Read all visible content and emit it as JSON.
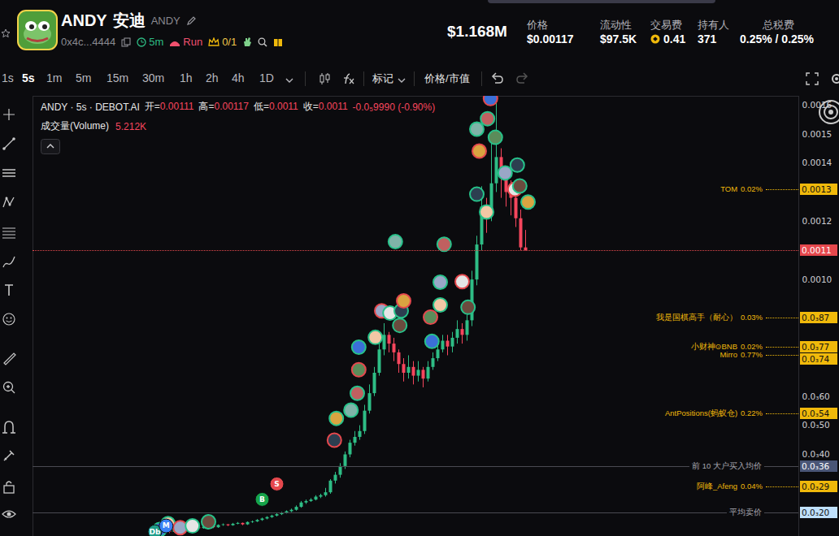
{
  "header": {
    "symbol": "ANDY",
    "name": "安迪",
    "ticker": "ANDY",
    "address": "0x4c...4444",
    "age": "5m",
    "run": "Run",
    "crown": "0/1",
    "market_cap": "$1.168M",
    "stats": [
      {
        "label": "价格",
        "value": "$0.00117"
      },
      {
        "label": "流动性",
        "value": "$97.5K"
      },
      {
        "label": "交易费",
        "value": "0.41"
      },
      {
        "label": "持有人",
        "value": "371"
      },
      {
        "label": "总税费",
        "value": "0.25% / 0.25%"
      }
    ]
  },
  "toolbar": {
    "intervals": [
      "1s",
      "5s",
      "1m",
      "5m",
      "15m",
      "30m",
      "1h",
      "2h",
      "4h",
      "1D"
    ],
    "active": "5s",
    "buttons": [
      "标记",
      "价格/市值"
    ]
  },
  "legend_line": {
    "title": "ANDY · 5s · DEBOT.AI",
    "items": [
      {
        "label": "开=",
        "value": "0.00111"
      },
      {
        "label": "高=",
        "value": "0.00117"
      },
      {
        "label": "低=",
        "value": "0.0011"
      },
      {
        "label": "收=",
        "value": "0.0011"
      }
    ],
    "change": "-0.0₅9990 (-0.90%)",
    "volume_label": "成交量(Volume)",
    "volume_value": "5.212K"
  },
  "chart_data": {
    "type": "candlestick",
    "tick_labels": "y",
    "grid": false,
    "x": [
      0,
      1,
      2,
      3,
      4,
      5,
      6,
      7,
      8,
      9,
      10,
      11,
      12,
      13,
      14,
      15,
      16,
      17,
      18,
      19,
      20,
      21,
      22,
      23,
      24,
      25,
      26,
      27,
      28,
      29,
      30,
      31,
      32,
      33,
      34,
      35,
      36,
      37,
      38,
      39,
      40,
      41,
      42,
      43,
      44,
      45,
      46,
      47,
      48,
      49,
      50,
      51,
      52,
      53,
      54,
      55,
      56,
      57,
      58,
      59,
      60,
      61,
      62,
      63,
      64,
      65,
      66,
      67,
      68,
      69,
      70,
      71,
      72,
      73,
      74,
      75
    ],
    "open": [
      0.00013,
      0.000135,
      0.000138,
      0.000134,
      0.00014,
      0.000142,
      0.000138,
      0.000145,
      0.00015,
      0.000147,
      0.000152,
      0.000155,
      0.00015,
      0.000158,
      0.00016,
      0.000157,
      0.000162,
      0.000165,
      0.00016,
      0.000168,
      0.00017,
      0.000175,
      0.00018,
      0.000185,
      0.00019,
      0.000195,
      0.0002,
      0.000205,
      0.00021,
      0.00022,
      0.000235,
      0.00024,
      0.000245,
      0.000255,
      0.00026,
      0.00027,
      0.00031,
      0.00033,
      0.00036,
      0.0004,
      0.00044,
      0.00046,
      0.00048,
      0.00055,
      0.00061,
      0.00068,
      0.00076,
      0.00081,
      0.00078,
      0.00075,
      0.00071,
      0.00068,
      0.0007,
      0.00067,
      0.00069,
      0.00066,
      0.0007,
      0.00073,
      0.00076,
      0.00079,
      0.00077,
      0.0008,
      0.00083,
      0.00081,
      0.00086,
      0.001,
      0.00112,
      0.00125,
      0.00122,
      0.00133,
      0.00142,
      0.00136,
      0.0013,
      0.00128,
      0.00121,
      0.00111
    ],
    "high": [
      0.00014,
      0.000142,
      0.00014,
      0.000143,
      0.000146,
      0.000144,
      0.000148,
      0.000153,
      0.000152,
      0.000155,
      0.000158,
      0.000157,
      0.00016,
      0.000163,
      0.000161,
      0.000165,
      0.000168,
      0.000166,
      0.00017,
      0.000173,
      0.000178,
      0.000183,
      0.000188,
      0.000193,
      0.000198,
      0.000203,
      0.000208,
      0.000214,
      0.000225,
      0.00024,
      0.000245,
      0.00025,
      0.00026,
      0.000265,
      0.000285,
      0.000315,
      0.00034,
      0.00037,
      0.00041,
      0.00045,
      0.00048,
      0.0005,
      0.00057,
      0.00064,
      0.0007,
      0.00079,
      0.00085,
      0.00082,
      0.0008,
      0.00076,
      0.00073,
      0.00074,
      0.00072,
      0.00072,
      0.0007,
      0.00072,
      0.00075,
      0.00078,
      0.00081,
      0.00081,
      0.00082,
      0.00086,
      0.00085,
      0.00088,
      0.00103,
      0.00115,
      0.00132,
      0.00128,
      0.0015,
      0.00163,
      0.00145,
      0.00138,
      0.00134,
      0.00129,
      0.00124,
      0.00117
    ],
    "low": [
      0.000128,
      0.000132,
      0.00013,
      0.000132,
      0.000138,
      0.000135,
      0.000136,
      0.000143,
      0.000144,
      0.000145,
      0.00015,
      0.000147,
      0.000148,
      0.000155,
      0.000154,
      0.000155,
      0.00016,
      0.000157,
      0.000158,
      0.000165,
      0.000168,
      0.000172,
      0.000177,
      0.000182,
      0.000187,
      0.000192,
      0.000197,
      0.000202,
      0.000207,
      0.000217,
      0.00023,
      0.000237,
      0.000242,
      0.00025,
      0.000255,
      0.000265,
      0.0003,
      0.00032,
      0.00035,
      0.00039,
      0.00043,
      0.00045,
      0.00047,
      0.00054,
      0.0006,
      0.00067,
      0.00074,
      0.00075,
      0.00072,
      0.00068,
      0.00065,
      0.00066,
      0.00064,
      0.00065,
      0.00063,
      0.00065,
      0.00069,
      0.00072,
      0.00075,
      0.00074,
      0.00075,
      0.00078,
      0.00078,
      0.00079,
      0.00084,
      0.00098,
      0.0011,
      0.00116,
      0.0012,
      0.0013,
      0.00128,
      0.00125,
      0.00122,
      0.00118,
      0.0011,
      0.0011
    ],
    "close": [
      0.000135,
      0.000138,
      0.000134,
      0.00014,
      0.000142,
      0.000138,
      0.000145,
      0.00015,
      0.000147,
      0.000152,
      0.000155,
      0.00015,
      0.000158,
      0.00016,
      0.000157,
      0.000162,
      0.000165,
      0.00016,
      0.000168,
      0.00017,
      0.000175,
      0.00018,
      0.000185,
      0.00019,
      0.000195,
      0.0002,
      0.000205,
      0.00021,
      0.00022,
      0.000235,
      0.00024,
      0.000245,
      0.000255,
      0.00026,
      0.00027,
      0.00031,
      0.00033,
      0.00036,
      0.0004,
      0.00044,
      0.00046,
      0.00048,
      0.00055,
      0.00061,
      0.00068,
      0.00076,
      0.00081,
      0.00078,
      0.00075,
      0.00071,
      0.00068,
      0.0007,
      0.00067,
      0.00069,
      0.00066,
      0.0007,
      0.00073,
      0.00076,
      0.00079,
      0.00077,
      0.0008,
      0.00083,
      0.00081,
      0.00086,
      0.001,
      0.00112,
      0.00125,
      0.00122,
      0.00133,
      0.00142,
      0.00136,
      0.0013,
      0.00128,
      0.00121,
      0.00111,
      0.0011
    ],
    "xlim": [
      -26,
      131
    ],
    "ylim": [
      0.00012,
      0.00163
    ],
    "yticks": [
      0.0016,
      0.0015,
      0.0014,
      0.0012,
      {
        "value": 0.001,
        "label": "0.0010"
      },
      {
        "value": 0.0006,
        "label": "0.0₃60"
      },
      {
        "value": 0.0005,
        "label": "0.0₃50"
      },
      {
        "value": 0.0004,
        "label": "0.0₃40"
      }
    ],
    "trades": {
      "x": [
        0,
        1.7,
        4.2,
        6.7,
        10,
        35.8,
        36.2,
        39.2,
        40.5,
        40.8,
        40.8,
        44.2,
        45.5,
        47.2,
        49.2,
        49.5,
        50,
        48.3,
        58.3,
        55.5,
        55.8,
        57.5,
        57.5,
        62,
        63.2,
        65,
        65.5,
        65,
        67.2,
        68.8,
        67.8,
        67,
        70.8,
        72.8,
        73.8,
        73.3,
        75.5
      ],
      "y": [
        0.000144,
        0.000164,
        0.00015,
        0.000156,
        0.00017,
        0.00045,
        0.000525,
        0.000553,
        0.000611,
        0.000692,
        0.000769,
        0.000803,
        0.000894,
        0.000886,
        0.000844,
        0.000894,
        0.000928,
        0.001131,
        0.001122,
        0.000872,
        0.000789,
        0.000914,
        0.000992,
        0.000994,
        0.000906,
        0.001294,
        0.001442,
        0.001517,
        0.001553,
        0.001489,
        0.001622,
        0.001233,
        0.001367,
        0.001311,
        0.001322,
        0.001394,
        0.001267
      ]
    },
    "markers": [
      {
        "label": "Db",
        "x": -1,
        "y": 0.000136,
        "color": "#1f9d8a"
      },
      {
        "label": "M",
        "x": 1.3,
        "y": 0.000156,
        "color": "#3b82f6"
      },
      {
        "label": "B",
        "x": 21,
        "y": 0.000247,
        "color": "#16a34a"
      },
      {
        "label": "S",
        "x": 24,
        "y": 0.0003,
        "color": "#e5484d"
      }
    ],
    "price_lines": [
      {
        "label": "TOM",
        "pct": "0.02%",
        "value": 0.00131,
        "tag": "0.0013",
        "color": "#f0b90b"
      },
      {
        "label": "我是国棋高手（耐心）",
        "pct": "0.03%",
        "value": 0.00087,
        "tag": "0.0₃87",
        "color": "#f0b90b"
      },
      {
        "label": "小财神⊙BNB",
        "pct": "0.02%",
        "value": 0.00077,
        "tag": "0.0₃77",
        "color": "#f0b90b"
      },
      {
        "label": "Mirro",
        "pct": "0.77%",
        "value": 0.00074,
        "tag": "0.0₃74",
        "color": "#f0b90b"
      },
      {
        "label": "AntPositions(蚂蚁仓)",
        "pct": "0.22%",
        "value": 0.00054,
        "tag": "0.0₃54",
        "color": "#f0b90b"
      },
      {
        "label": "前 10 大户买入均价",
        "value": 0.00036,
        "tag": "0.0₃36",
        "color": "#4a5677"
      },
      {
        "label": "阿峰_Afeng",
        "pct": "0.04%",
        "value": 0.00029,
        "tag": "0.0₃29",
        "color": "#f0b90b"
      },
      {
        "label": "平均卖价",
        "value": 0.0002,
        "tag": "0.0₃20",
        "color": "#bfe0fb"
      }
    ],
    "current_price": {
      "value": 0.0011,
      "tag": "0.0011",
      "color": "#e5484d"
    }
  }
}
